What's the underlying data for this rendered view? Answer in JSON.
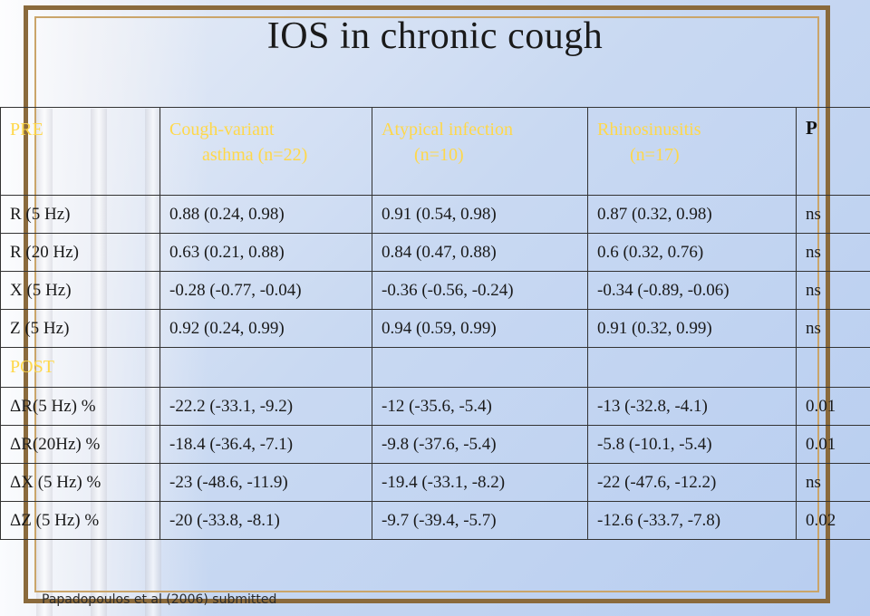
{
  "title": "IOS in chronic cough",
  "table": {
    "header": {
      "col0": "PRE",
      "col1_line1": "Cough-variant",
      "col1_line2": "asthma (n=22)",
      "col2_line1": "Atypical infection",
      "col2_line2": "(n=10)",
      "col3_line1": "Rhinosinusitis",
      "col3_line2": "(n=17)",
      "col4": "P"
    },
    "pre_rows": [
      [
        "R (5 Hz)",
        "0.88 (0.24, 0.98)",
        "0.91 (0.54, 0.98)",
        "0.87 (0.32, 0.98)",
        "ns"
      ],
      [
        "R (20 Hz)",
        "0.63 (0.21, 0.88)",
        "0.84 (0.47, 0.88)",
        "0.6 (0.32, 0.76)",
        "ns"
      ],
      [
        "X (5 Hz)",
        "-0.28 (-0.77, -0.04)",
        "-0.36 (-0.56, -0.24)",
        "-0.34 (-0.89, -0.06)",
        "ns"
      ],
      [
        "Z (5 Hz)",
        "0.92 (0.24, 0.99)",
        "0.94 (0.59, 0.99)",
        "0.91 (0.32, 0.99)",
        "ns"
      ]
    ],
    "post_label": "POST",
    "post_rows": [
      [
        "ΔR(5 Hz) %",
        "-22.2 (-33.1, -9.2)",
        "-12 (-35.6, -5.4)",
        "-13 (-32.8, -4.1)",
        "0.01"
      ],
      [
        "ΔR(20Hz) %",
        "-18.4 (-36.4, -7.1)",
        "-9.8 (-37.6, -5.4)",
        "-5.8 (-10.1, -5.4)",
        "0.01"
      ],
      [
        "ΔX (5 Hz) %",
        "-23 (-48.6, -11.9)",
        "-19.4 (-33.1, -8.2)",
        "-22 (-47.6, -12.2)",
        "ns"
      ],
      [
        "ΔZ (5 Hz) %",
        "-20 (-33.8, -8.1)",
        "-9.7 (-39.4, -5.7)",
        "-12.6 (-33.7, -7.8)",
        "0.02"
      ]
    ]
  },
  "footer": "Papadopoulos et al (2006) submitted",
  "colors": {
    "accent": "#ffd84a",
    "frame": "#8a6a3c",
    "background": "#c9d9f2"
  }
}
